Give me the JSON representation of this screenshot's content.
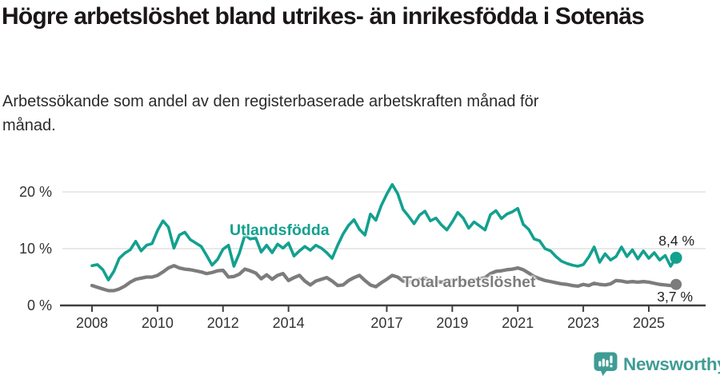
{
  "title": "Högre arbetslöshet bland utrikes- än inrikesfödda i Sotenäs",
  "subtitle": "Arbetssökande som andel av den registerbaserade arbetskraften månad för månad.",
  "branding": {
    "logo_text": "Newsworthy",
    "logo_icon": "newsworthy-pin-barchart-icon",
    "logo_color": "#3f9c95"
  },
  "colors": {
    "foreign_born_line": "#13a08f",
    "total_line": "#7c7c7c",
    "gridline": "#e2e2e2",
    "axis": "#3f3f3f",
    "tick_text": "#333333",
    "title_text": "#1b1717",
    "value_label_text": "#1f1f1f"
  },
  "chart_data": {
    "type": "line",
    "title": "Högre arbetslöshet bland utrikes- än inrikesfödda i Sotenäs",
    "subtitle": "Arbetssökande som andel av den registerbaserade arbetskraften månad för månad.",
    "unit": "percent",
    "grid": "horizontal-only",
    "legend_position": "inline-labels-on-lines",
    "x_unit": "decimal_year",
    "x_start": 2008.0,
    "x_step_years": 0.1666667,
    "x_end_approx": 2025.83,
    "x_ticks": [
      2008,
      2010,
      2012,
      2014,
      2017,
      2019,
      2021,
      2023,
      2025
    ],
    "y_ticks": [
      "0 %",
      "10 %",
      "20 %"
    ],
    "y_tick_values": [
      0,
      10,
      20
    ],
    "ylim": [
      0,
      23
    ],
    "series": [
      {
        "id": "utlandsfodda",
        "name": "Utlandsfödda",
        "color": "#13a08f",
        "end_label": "8,4 %",
        "end_value": 8.4,
        "values": [
          7.0,
          7.2,
          6.3,
          4.5,
          6.0,
          8.3,
          9.2,
          9.8,
          11.3,
          9.6,
          10.6,
          10.9,
          13.2,
          14.9,
          13.8,
          10.1,
          12.4,
          12.9,
          11.6,
          11.0,
          10.4,
          8.8,
          7.1,
          8.1,
          9.9,
          10.6,
          6.9,
          9.2,
          12.4,
          11.7,
          11.9,
          9.4,
          10.6,
          9.3,
          10.8,
          10.1,
          11.0,
          8.7,
          9.6,
          10.4,
          9.7,
          10.6,
          10.1,
          9.3,
          8.3,
          10.6,
          12.6,
          14.1,
          15.1,
          13.4,
          12.4,
          16.1,
          15.0,
          17.6,
          19.6,
          21.3,
          19.7,
          16.9,
          15.7,
          14.4,
          15.9,
          16.6,
          14.9,
          15.4,
          14.2,
          13.3,
          14.7,
          16.4,
          15.4,
          13.6,
          14.7,
          14.0,
          13.3,
          16.0,
          16.7,
          15.3,
          16.1,
          16.5,
          17.1,
          14.3,
          13.4,
          11.7,
          11.4,
          10.0,
          9.6,
          8.6,
          7.8,
          7.4,
          7.1,
          6.9,
          7.2,
          8.5,
          10.3,
          7.6,
          9.1,
          8.0,
          8.6,
          10.3,
          8.6,
          9.8,
          8.2,
          9.6,
          8.3,
          9.3,
          8.0,
          8.8,
          6.9,
          8.4
        ]
      },
      {
        "id": "total",
        "name": "Total arbetslöshet",
        "color": "#7c7c7c",
        "end_label": "3,7 %",
        "end_value": 3.7,
        "values": [
          3.5,
          3.2,
          2.9,
          2.6,
          2.6,
          2.9,
          3.4,
          4.1,
          4.6,
          4.8,
          5.0,
          5.0,
          5.3,
          5.9,
          6.6,
          7.0,
          6.6,
          6.4,
          6.3,
          6.1,
          5.9,
          5.6,
          5.8,
          6.1,
          6.2,
          5.0,
          5.1,
          5.5,
          6.4,
          6.1,
          5.7,
          4.7,
          5.4,
          4.6,
          5.3,
          5.6,
          4.4,
          4.9,
          5.3,
          4.3,
          3.6,
          4.3,
          4.6,
          4.9,
          4.3,
          3.5,
          3.6,
          4.4,
          4.9,
          5.3,
          4.4,
          3.6,
          3.3,
          4.0,
          4.6,
          5.3,
          5.0,
          4.3,
          4.1,
          4.3,
          4.6,
          4.8,
          4.4,
          4.2,
          4.1,
          4.4,
          4.4,
          4.6,
          4.3,
          4.2,
          4.5,
          4.7,
          4.9,
          5.6,
          6.0,
          6.1,
          6.3,
          6.4,
          6.6,
          6.3,
          5.7,
          5.1,
          4.7,
          4.4,
          4.2,
          4.0,
          3.8,
          3.7,
          3.5,
          3.4,
          3.7,
          3.5,
          3.9,
          3.7,
          3.6,
          3.8,
          4.4,
          4.3,
          4.1,
          4.2,
          4.1,
          4.2,
          4.1,
          3.9,
          3.7,
          3.6,
          3.5,
          3.7
        ]
      }
    ]
  }
}
